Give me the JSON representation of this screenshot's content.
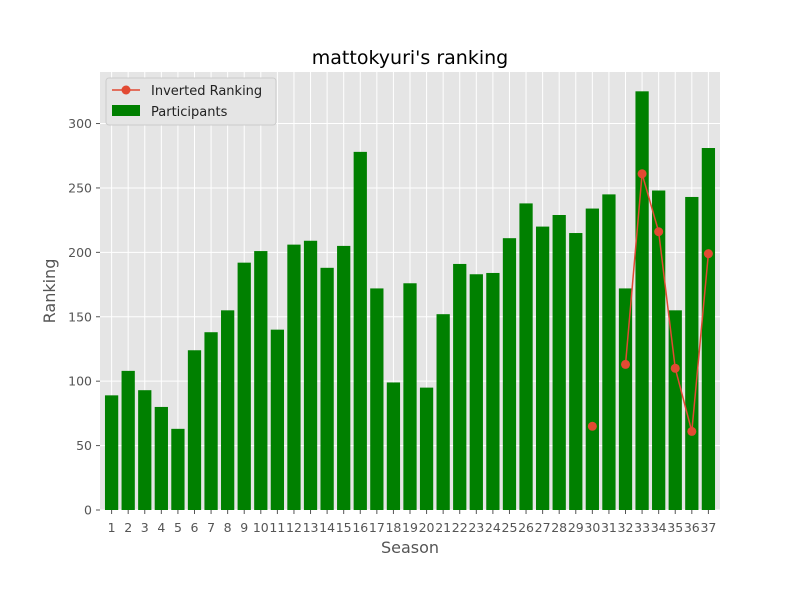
{
  "chart_data": {
    "type": "bar",
    "title": "mattokyuri's ranking",
    "xlabel": "Season",
    "ylabel": "Ranking",
    "ylim": [
      0,
      340
    ],
    "yticks": [
      0,
      50,
      100,
      150,
      200,
      250,
      300
    ],
    "grid": true,
    "legend_position": "top-left",
    "categories": [
      "1",
      "2",
      "3",
      "4",
      "5",
      "6",
      "7",
      "8",
      "9",
      "10",
      "11",
      "12",
      "13",
      "14",
      "15",
      "16",
      "17",
      "18",
      "19",
      "20",
      "21",
      "22",
      "23",
      "24",
      "25",
      "26",
      "27",
      "28",
      "29",
      "30",
      "31",
      "32",
      "33",
      "34",
      "35",
      "36",
      "37"
    ],
    "series": [
      {
        "name": "Participants",
        "type": "bar",
        "color": "#008000",
        "values": [
          89,
          108,
          93,
          80,
          63,
          124,
          138,
          155,
          192,
          201,
          140,
          206,
          209,
          188,
          205,
          278,
          172,
          99,
          176,
          95,
          152,
          191,
          183,
          184,
          211,
          238,
          220,
          229,
          215,
          234,
          245,
          172,
          325,
          248,
          155,
          243,
          281
        ]
      },
      {
        "name": "Inverted Ranking",
        "type": "line",
        "color": "#E24A33",
        "values": [
          null,
          null,
          null,
          null,
          null,
          null,
          null,
          null,
          null,
          null,
          null,
          null,
          null,
          null,
          null,
          null,
          null,
          null,
          null,
          null,
          null,
          null,
          null,
          null,
          null,
          null,
          null,
          null,
          null,
          65,
          null,
          113,
          261,
          216,
          110,
          61,
          199
        ]
      }
    ]
  }
}
